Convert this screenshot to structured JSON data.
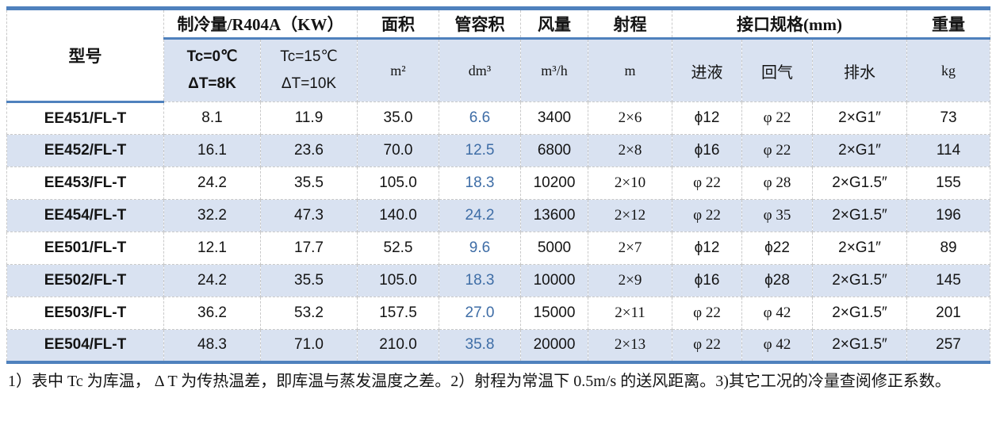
{
  "table": {
    "header": {
      "model": "型号",
      "capacity_group": "制冷量/R404A（KW）",
      "tc0_line1": "Tc=0℃",
      "tc0_line2": "ΔT=8K",
      "tc15_line1": "Tc=15℃",
      "tc15_line2": "ΔT=10K",
      "area": "面积",
      "area_unit": "m²",
      "volume": "管容积",
      "volume_unit": "dm³",
      "airflow": "风量",
      "airflow_unit": "m³/h",
      "throw": "射程",
      "throw_unit": "m",
      "interface_group": "接口规格(mm)",
      "liquid": "进液",
      "gas": "回气",
      "drain": "排水",
      "weight": "重量",
      "weight_unit": "kg"
    },
    "rows": [
      {
        "model": "EE451/FL-T",
        "tc0": "8.1",
        "tc15": "11.9",
        "area": "35.0",
        "volume": "6.6",
        "airflow": "3400",
        "throw": "2×6",
        "liquid": "ϕ12",
        "gas": "φ 22",
        "drain": "2×G1″",
        "weight": "73"
      },
      {
        "model": "EE452/FL-T",
        "tc0": "16.1",
        "tc15": "23.6",
        "area": "70.0",
        "volume": "12.5",
        "airflow": "6800",
        "throw": "2×8",
        "liquid": "ϕ16",
        "gas": "φ 22",
        "drain": "2×G1″",
        "weight": "114"
      },
      {
        "model": "EE453/FL-T",
        "tc0": "24.2",
        "tc15": "35.5",
        "area": "105.0",
        "volume": "18.3",
        "airflow": "10200",
        "throw": "2×10",
        "liquid": "φ 22",
        "gas": "φ 28",
        "drain": "2×G1.5″",
        "weight": "155"
      },
      {
        "model": "EE454/FL-T",
        "tc0": "32.2",
        "tc15": "47.3",
        "area": "140.0",
        "volume": "24.2",
        "airflow": "13600",
        "throw": "2×12",
        "liquid": "φ 22",
        "gas": "φ 35",
        "drain": "2×G1.5″",
        "weight": "196"
      },
      {
        "model": "EE501/FL-T",
        "tc0": "12.1",
        "tc15": "17.7",
        "area": "52.5",
        "volume": "9.6",
        "airflow": "5000",
        "throw": "2×7",
        "liquid": "ϕ12",
        "gas": "ϕ22",
        "drain": "2×G1″",
        "weight": "89"
      },
      {
        "model": "EE502/FL-T",
        "tc0": "24.2",
        "tc15": "35.5",
        "area": "105.0",
        "volume": "18.3",
        "airflow": "10000",
        "throw": "2×9",
        "liquid": "ϕ16",
        "gas": "ϕ28",
        "drain": "2×G1.5″",
        "weight": "145"
      },
      {
        "model": "EE503/FL-T",
        "tc0": "36.2",
        "tc15": "53.2",
        "area": "157.5",
        "volume": "27.0",
        "airflow": "15000",
        "throw": "2×11",
        "liquid": "φ 22",
        "gas": "φ 42",
        "drain": "2×G1.5″",
        "weight": "201"
      },
      {
        "model": "EE504/FL-T",
        "tc0": "48.3",
        "tc15": "71.0",
        "area": "210.0",
        "volume": "35.8",
        "airflow": "20000",
        "throw": "2×13",
        "liquid": "φ 22",
        "gas": "φ 42",
        "drain": "2×G1.5″",
        "weight": "257"
      }
    ]
  },
  "notes": "1）表中 Tc 为库温， Δ T 为传热温差，即库温与蒸发温度之差。2）射程为常温下 0.5m/s 的送风距离。3)其它工况的冷量查阅修正系数。",
  "colors": {
    "accent_blue": "#4f81bd",
    "row_stripe_blue": "#d9e2f1",
    "grid_line": "#c9c9c9",
    "volume_text_blue": "#3e6da6",
    "text": "#141414"
  }
}
